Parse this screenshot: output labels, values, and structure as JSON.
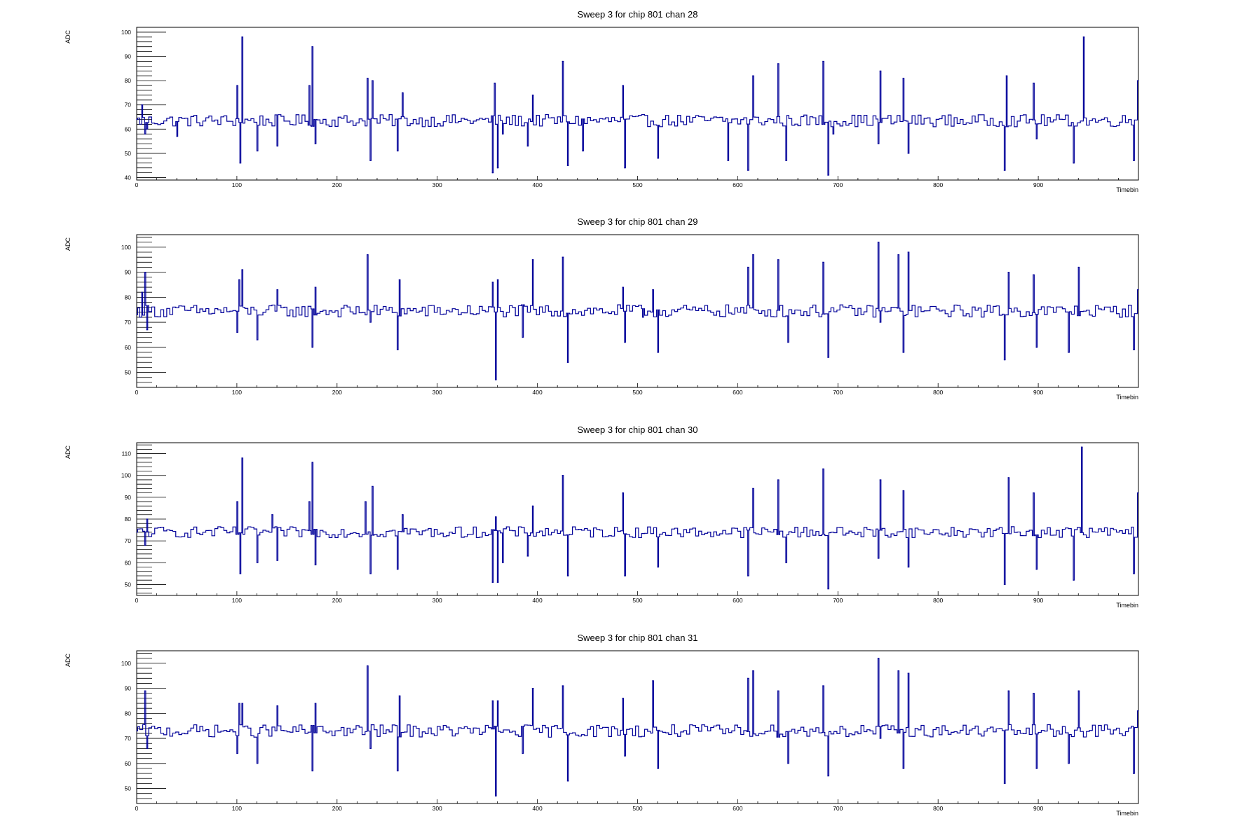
{
  "chart_data": [
    {
      "type": "line",
      "title": "Sweep 3 for chip 801 chan 28",
      "xlabel": "Timebin",
      "ylabel": "ADC",
      "xlim": [
        0,
        1000
      ],
      "ylim": [
        39,
        102
      ],
      "xticks": [
        0,
        100,
        200,
        300,
        400,
        500,
        600,
        700,
        800,
        900
      ],
      "yticks": [
        40,
        50,
        60,
        70,
        80,
        90,
        100
      ],
      "color": "#000099",
      "baseline": 63.5,
      "points": [
        [
          0,
          64
        ],
        [
          5,
          70
        ],
        [
          8,
          58
        ],
        [
          10,
          60
        ],
        [
          40,
          57
        ],
        [
          100,
          78
        ],
        [
          103,
          46
        ],
        [
          105,
          98
        ],
        [
          120,
          51
        ],
        [
          140,
          53
        ],
        [
          172,
          78
        ],
        [
          175,
          94
        ],
        [
          178,
          54
        ],
        [
          230,
          81
        ],
        [
          233,
          47
        ],
        [
          235,
          80
        ],
        [
          260,
          51
        ],
        [
          265,
          75
        ],
        [
          355,
          42
        ],
        [
          357,
          79
        ],
        [
          360,
          44
        ],
        [
          365,
          58
        ],
        [
          390,
          53
        ],
        [
          395,
          74
        ],
        [
          425,
          88
        ],
        [
          430,
          45
        ],
        [
          445,
          51
        ],
        [
          485,
          78
        ],
        [
          487,
          44
        ],
        [
          520,
          48
        ],
        [
          590,
          47
        ],
        [
          610,
          43
        ],
        [
          615,
          82
        ],
        [
          640,
          87
        ],
        [
          648,
          47
        ],
        [
          685,
          88
        ],
        [
          690,
          41
        ],
        [
          695,
          58
        ],
        [
          740,
          54
        ],
        [
          742,
          84
        ],
        [
          765,
          81
        ],
        [
          770,
          50
        ],
        [
          866,
          43
        ],
        [
          868,
          82
        ],
        [
          895,
          79
        ],
        [
          898,
          56
        ],
        [
          935,
          46
        ],
        [
          945,
          98
        ],
        [
          995,
          47
        ],
        [
          1000,
          80
        ]
      ]
    },
    {
      "type": "line",
      "title": "Sweep 3 for chip 801 chan 29",
      "xlabel": "Timebin",
      "ylabel": "ADC",
      "xlim": [
        0,
        1000
      ],
      "ylim": [
        44,
        105
      ],
      "xticks": [
        0,
        100,
        200,
        300,
        400,
        500,
        600,
        700,
        800,
        900
      ],
      "yticks": [
        50,
        60,
        70,
        80,
        90,
        100
      ],
      "color": "#000099",
      "baseline": 74.5,
      "points": [
        [
          0,
          73
        ],
        [
          5,
          82
        ],
        [
          8,
          90
        ],
        [
          10,
          67
        ],
        [
          100,
          66
        ],
        [
          102,
          87
        ],
        [
          105,
          91
        ],
        [
          120,
          63
        ],
        [
          140,
          83
        ],
        [
          175,
          60
        ],
        [
          178,
          84
        ],
        [
          230,
          97
        ],
        [
          233,
          70
        ],
        [
          260,
          59
        ],
        [
          262,
          87
        ],
        [
          355,
          86
        ],
        [
          358,
          47
        ],
        [
          360,
          87
        ],
        [
          385,
          64
        ],
        [
          395,
          95
        ],
        [
          425,
          96
        ],
        [
          430,
          54
        ],
        [
          485,
          84
        ],
        [
          487,
          62
        ],
        [
          505,
          72
        ],
        [
          515,
          83
        ],
        [
          520,
          58
        ],
        [
          610,
          92
        ],
        [
          615,
          97
        ],
        [
          640,
          95
        ],
        [
          650,
          62
        ],
        [
          685,
          94
        ],
        [
          690,
          56
        ],
        [
          740,
          102
        ],
        [
          742,
          70
        ],
        [
          760,
          97
        ],
        [
          765,
          58
        ],
        [
          770,
          98
        ],
        [
          866,
          55
        ],
        [
          870,
          90
        ],
        [
          895,
          89
        ],
        [
          898,
          60
        ],
        [
          930,
          58
        ],
        [
          940,
          92
        ],
        [
          995,
          59
        ],
        [
          1000,
          83
        ]
      ]
    },
    {
      "type": "line",
      "title": "Sweep 3 for chip 801 chan 30",
      "xlabel": "Timebin",
      "ylabel": "ADC",
      "xlim": [
        0,
        1000
      ],
      "ylim": [
        45,
        115
      ],
      "xticks": [
        0,
        100,
        200,
        300,
        400,
        500,
        600,
        700,
        800,
        900
      ],
      "yticks": [
        50,
        60,
        70,
        80,
        90,
        100,
        110
      ],
      "color": "#000099",
      "baseline": 74,
      "points": [
        [
          0,
          74
        ],
        [
          8,
          68
        ],
        [
          10,
          80
        ],
        [
          100,
          88
        ],
        [
          103,
          55
        ],
        [
          105,
          108
        ],
        [
          120,
          60
        ],
        [
          135,
          82
        ],
        [
          140,
          61
        ],
        [
          172,
          88
        ],
        [
          175,
          106
        ],
        [
          178,
          59
        ],
        [
          228,
          88
        ],
        [
          233,
          55
        ],
        [
          235,
          95
        ],
        [
          260,
          57
        ],
        [
          265,
          82
        ],
        [
          355,
          51
        ],
        [
          358,
          81
        ],
        [
          360,
          51
        ],
        [
          365,
          60
        ],
        [
          390,
          63
        ],
        [
          395,
          86
        ],
        [
          425,
          100
        ],
        [
          430,
          54
        ],
        [
          485,
          92
        ],
        [
          487,
          54
        ],
        [
          520,
          58
        ],
        [
          610,
          54
        ],
        [
          615,
          94
        ],
        [
          640,
          98
        ],
        [
          648,
          60
        ],
        [
          685,
          103
        ],
        [
          690,
          48
        ],
        [
          740,
          62
        ],
        [
          742,
          98
        ],
        [
          765,
          93
        ],
        [
          770,
          58
        ],
        [
          866,
          50
        ],
        [
          870,
          99
        ],
        [
          895,
          92
        ],
        [
          898,
          57
        ],
        [
          935,
          52
        ],
        [
          943,
          113
        ],
        [
          995,
          55
        ],
        [
          1000,
          92
        ]
      ]
    },
    {
      "type": "line",
      "title": "Sweep 3 for chip 801 chan 31",
      "xlabel": "Timebin",
      "ylabel": "ADC",
      "xlim": [
        0,
        1000
      ],
      "ylim": [
        44,
        105
      ],
      "xticks": [
        0,
        100,
        200,
        300,
        400,
        500,
        600,
        700,
        800,
        900
      ],
      "yticks": [
        50,
        60,
        70,
        80,
        90,
        100
      ],
      "color": "#000099",
      "baseline": 73,
      "points": [
        [
          0,
          73
        ],
        [
          8,
          89
        ],
        [
          10,
          66
        ],
        [
          100,
          64
        ],
        [
          102,
          84
        ],
        [
          105,
          84
        ],
        [
          120,
          60
        ],
        [
          140,
          83
        ],
        [
          175,
          57
        ],
        [
          178,
          84
        ],
        [
          230,
          99
        ],
        [
          233,
          66
        ],
        [
          260,
          57
        ],
        [
          262,
          87
        ],
        [
          355,
          85
        ],
        [
          358,
          47
        ],
        [
          360,
          85
        ],
        [
          385,
          64
        ],
        [
          395,
          90
        ],
        [
          425,
          91
        ],
        [
          430,
          53
        ],
        [
          485,
          86
        ],
        [
          487,
          63
        ],
        [
          515,
          93
        ],
        [
          520,
          58
        ],
        [
          610,
          94
        ],
        [
          615,
          97
        ],
        [
          640,
          89
        ],
        [
          650,
          60
        ],
        [
          685,
          91
        ],
        [
          690,
          55
        ],
        [
          740,
          102
        ],
        [
          742,
          70
        ],
        [
          760,
          97
        ],
        [
          765,
          58
        ],
        [
          770,
          96
        ],
        [
          866,
          52
        ],
        [
          870,
          89
        ],
        [
          895,
          88
        ],
        [
          898,
          58
        ],
        [
          930,
          60
        ],
        [
          940,
          89
        ],
        [
          995,
          56
        ],
        [
          1000,
          81
        ]
      ]
    }
  ]
}
